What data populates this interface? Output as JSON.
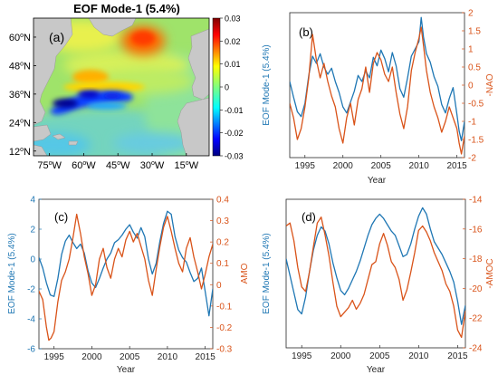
{
  "colors": {
    "blue": "#1f77b4",
    "orange": "#d95319",
    "land": "#c8c8c8",
    "axis": "#262626"
  },
  "chart_data": [
    {
      "panel": "(a)",
      "type": "heatmap",
      "title": "EOF  Mode-1  (5.4%)",
      "colorbar": {
        "ticks": [
          "0.03",
          "0.02",
          "0.01",
          "0",
          "-0.01",
          "-0.02",
          "-0.03"
        ],
        "range": [
          -0.03,
          0.03
        ],
        "colormap": "jet"
      },
      "lat_ticks": [
        "60°N",
        "48°N",
        "36°N",
        "24°N",
        "12°N"
      ],
      "lon_ticks": [
        "75°W",
        "60°W",
        "45°W",
        "30°W",
        "15°W"
      ],
      "lat_range": [
        10,
        68
      ],
      "lon_range": [
        -82,
        -5
      ],
      "features": [
        {
          "kind": "high",
          "lon": -42,
          "lat": 63,
          "value": 0.02
        },
        {
          "kind": "high",
          "lon": -62,
          "lat": 46,
          "value": 0.012
        },
        {
          "kind": "low",
          "lon": -72,
          "lat": 36,
          "value": -0.03
        },
        {
          "kind": "low",
          "lon": -58,
          "lat": 39,
          "value": -0.028
        },
        {
          "kind": "low",
          "lon": -45,
          "lat": 38,
          "value": -0.022
        }
      ]
    },
    {
      "panel": "(b)",
      "type": "line",
      "xlabel": "Year",
      "ylabel_left": "EOF  Mode-1  (5.4%)",
      "ylabel_right": "-NAO",
      "xlim": [
        1993,
        2016
      ],
      "ylim_left": [
        -6,
        6
      ],
      "ylim_right": [
        -2,
        2
      ],
      "x_ticks": [
        "1995",
        "2000",
        "2005",
        "2010",
        "2015"
      ],
      "yl_ticks": [],
      "yr_ticks": [
        "2",
        "1.5",
        "1",
        "0.5",
        "0",
        "-0.5",
        "-1",
        "-1.5",
        "-2"
      ],
      "series": [
        {
          "axis": "left",
          "color": "blue",
          "x": [
            1993.0,
            1993.5,
            1994.0,
            1994.5,
            1995.0,
            1995.5,
            1996.0,
            1996.5,
            1997.0,
            1997.5,
            1998.0,
            1998.5,
            1999.0,
            1999.5,
            2000.0,
            2000.5,
            2001.0,
            2001.5,
            2002.0,
            2002.5,
            2003.0,
            2003.5,
            2004.0,
            2004.5,
            2005.0,
            2005.5,
            2006.0,
            2006.5,
            2007.0,
            2007.5,
            2008.0,
            2008.5,
            2009.0,
            2009.5,
            2010.0,
            2010.3,
            2010.6,
            2011.0,
            2011.5,
            2012.0,
            2012.5,
            2013.0,
            2013.5,
            2014.0,
            2014.5,
            2015.0,
            2015.3,
            2015.6,
            2016.0
          ],
          "y": [
            0.3,
            -1.0,
            -2.2,
            -2.6,
            -1.5,
            0.8,
            2.4,
            1.8,
            2.6,
            1.5,
            0.9,
            1.4,
            0.3,
            -0.6,
            -1.8,
            -2.3,
            -1.4,
            -0.5,
            0.8,
            0.3,
            1.2,
            0.6,
            2.3,
            1.6,
            2.9,
            2.2,
            1.1,
            2.7,
            1.6,
            -0.3,
            -1.0,
            0.6,
            2.4,
            3.0,
            3.6,
            5.6,
            4.0,
            2.6,
            1.9,
            0.7,
            -0.1,
            -1.6,
            -2.3,
            -1.1,
            -0.2,
            -2.4,
            -3.8,
            -4.6,
            -3.0
          ]
        },
        {
          "axis": "right",
          "color": "orange",
          "x": [
            1993.0,
            1993.5,
            1994.0,
            1994.5,
            1995.0,
            1995.5,
            1996.0,
            1996.5,
            1997.0,
            1997.5,
            1998.0,
            1998.5,
            1999.0,
            1999.5,
            2000.0,
            2000.5,
            2001.0,
            2001.5,
            2002.0,
            2002.5,
            2003.0,
            2003.5,
            2004.0,
            2004.5,
            2005.0,
            2005.5,
            2006.0,
            2006.5,
            2007.0,
            2007.5,
            2008.0,
            2008.5,
            2009.0,
            2009.5,
            2010.0,
            2010.3,
            2010.6,
            2011.0,
            2011.5,
            2012.0,
            2012.5,
            2013.0,
            2013.5,
            2014.0,
            2014.5,
            2015.0,
            2015.3,
            2015.6,
            2016.0
          ],
          "y": [
            -0.5,
            -0.9,
            -1.5,
            -1.2,
            -0.6,
            0.2,
            1.4,
            0.7,
            0.2,
            0.6,
            0.1,
            -0.3,
            -0.6,
            -1.2,
            -1.6,
            -0.9,
            -0.5,
            -1.1,
            -0.4,
            -0.1,
            0.5,
            -0.2,
            0.6,
            0.9,
            0.7,
            0.3,
            0.1,
            0.5,
            -0.2,
            -0.8,
            -1.2,
            -0.6,
            0.4,
            0.9,
            1.3,
            1.6,
            1.1,
            0.4,
            -0.2,
            -0.6,
            -0.9,
            -1.3,
            -1.0,
            -0.6,
            -0.9,
            -1.2,
            -1.6,
            -1.9,
            -1.4
          ]
        }
      ]
    },
    {
      "panel": "(c)",
      "type": "line",
      "xlabel": "Year",
      "ylabel_left": "EOF  Mode-1  (5.4%)",
      "ylabel_right": "AMO",
      "xlim": [
        1993,
        2016
      ],
      "ylim_left": [
        -6,
        4
      ],
      "ylim_right": [
        -0.3,
        0.4
      ],
      "x_ticks": [
        "1995",
        "2000",
        "2005",
        "2010",
        "2015"
      ],
      "yl_ticks": [
        "4",
        "2",
        "0",
        "-2",
        "-4",
        "-6"
      ],
      "yr_ticks": [
        "0.4",
        "0.3",
        "0.2",
        "0.1",
        "0",
        "-0.1",
        "-0.2",
        "-0.3"
      ],
      "series": [
        {
          "axis": "left",
          "color": "blue",
          "x": [
            1993.0,
            1993.5,
            1994.0,
            1994.5,
            1995.0,
            1995.5,
            1996.0,
            1996.5,
            1997.0,
            1997.5,
            1998.0,
            1998.5,
            1999.0,
            1999.5,
            2000.0,
            2000.5,
            2001.0,
            2001.5,
            2002.0,
            2002.5,
            2003.0,
            2003.5,
            2004.0,
            2004.5,
            2005.0,
            2005.5,
            2006.0,
            2006.5,
            2007.0,
            2007.5,
            2008.0,
            2008.5,
            2009.0,
            2009.5,
            2010.0,
            2010.5,
            2011.0,
            2011.5,
            2012.0,
            2012.5,
            2013.0,
            2013.5,
            2014.0,
            2014.5,
            2015.0,
            2015.5,
            2016.0
          ],
          "y": [
            0.1,
            -0.6,
            -1.6,
            -2.4,
            -2.5,
            -1.3,
            0.3,
            1.2,
            1.6,
            1.1,
            0.7,
            1.0,
            0.4,
            -0.8,
            -1.6,
            -1.9,
            -1.3,
            -0.6,
            0.0,
            0.4,
            1.1,
            1.3,
            1.6,
            2.0,
            2.3,
            1.8,
            1.4,
            2.1,
            1.5,
            0.0,
            -1.0,
            -0.3,
            1.2,
            2.4,
            3.2,
            3.0,
            1.5,
            0.6,
            0.1,
            -0.2,
            -0.9,
            -1.5,
            -1.3,
            -0.6,
            -2.2,
            -3.8,
            -2.0
          ]
        },
        {
          "axis": "right",
          "color": "orange",
          "x": [
            1993.0,
            1993.5,
            1994.0,
            1994.3,
            1994.6,
            1995.0,
            1995.5,
            1996.0,
            1996.5,
            1997.0,
            1997.5,
            1998.0,
            1998.5,
            1999.0,
            1999.5,
            2000.0,
            2000.5,
            2001.0,
            2001.5,
            2002.0,
            2002.5,
            2003.0,
            2003.5,
            2004.0,
            2004.5,
            2005.0,
            2005.5,
            2006.0,
            2006.5,
            2007.0,
            2007.5,
            2008.0,
            2008.5,
            2009.0,
            2009.5,
            2010.0,
            2010.5,
            2011.0,
            2011.5,
            2012.0,
            2012.5,
            2013.0,
            2013.5,
            2014.0,
            2014.5,
            2015.0,
            2015.5,
            2016.0
          ],
          "y": [
            -0.03,
            -0.07,
            -0.2,
            -0.26,
            -0.25,
            -0.22,
            -0.08,
            0.02,
            0.06,
            0.12,
            0.22,
            0.33,
            0.24,
            0.13,
            0.05,
            -0.05,
            0.0,
            0.12,
            0.17,
            0.08,
            0.03,
            0.12,
            0.17,
            0.13,
            0.21,
            0.25,
            0.2,
            0.24,
            0.18,
            0.12,
            0.02,
            -0.05,
            0.07,
            0.18,
            0.27,
            0.32,
            0.25,
            0.17,
            0.1,
            0.06,
            0.17,
            0.22,
            0.13,
            0.06,
            -0.02,
            0.05,
            0.13,
            0.19
          ]
        }
      ]
    },
    {
      "panel": "(d)",
      "type": "line",
      "xlabel": "Year",
      "ylabel_left": "EOF  Mode-1  (5.4%)",
      "ylabel_right": "-AMOC",
      "xlim": [
        1993,
        2016
      ],
      "ylim_left": [
        -4,
        3
      ],
      "ylim_right": [
        -24,
        -14
      ],
      "x_ticks": [
        "1995",
        "2000",
        "2005",
        "2010",
        "2015"
      ],
      "yl_ticks": [],
      "yr_ticks": [
        "-14",
        "-16",
        "-18",
        "-20",
        "-22",
        "-24"
      ],
      "series": [
        {
          "axis": "left",
          "color": "blue",
          "x": [
            1993.0,
            1993.5,
            1994.0,
            1994.5,
            1995.0,
            1995.5,
            1996.0,
            1996.5,
            1997.0,
            1997.5,
            1998.0,
            1998.5,
            1999.0,
            1999.5,
            2000.0,
            2000.5,
            2001.0,
            2001.5,
            2002.0,
            2002.5,
            2003.0,
            2003.5,
            2004.0,
            2004.5,
            2005.0,
            2005.5,
            2006.0,
            2006.5,
            2007.0,
            2007.5,
            2008.0,
            2008.5,
            2009.0,
            2009.5,
            2010.0,
            2010.5,
            2011.0,
            2011.5,
            2012.0,
            2012.5,
            2013.0,
            2013.5,
            2014.0,
            2014.5,
            2015.0,
            2015.5,
            2016.0
          ],
          "y": [
            0.2,
            -0.6,
            -1.4,
            -2.2,
            -2.4,
            -1.6,
            -0.4,
            0.6,
            1.3,
            1.7,
            1.5,
            0.9,
            0.0,
            -0.7,
            -1.3,
            -1.5,
            -1.2,
            -0.8,
            -0.4,
            0.1,
            0.7,
            1.3,
            1.8,
            2.1,
            2.3,
            2.1,
            1.8,
            1.5,
            1.3,
            0.8,
            0.3,
            0.4,
            0.9,
            1.6,
            2.2,
            2.6,
            2.3,
            1.6,
            1.0,
            0.7,
            0.4,
            0.0,
            -0.4,
            -0.9,
            -1.8,
            -2.9,
            -2.0
          ]
        },
        {
          "axis": "right",
          "color": "orange",
          "x": [
            1993.0,
            1993.5,
            1994.0,
            1994.5,
            1995.0,
            1995.5,
            1996.0,
            1996.5,
            1997.0,
            1997.5,
            1998.0,
            1998.5,
            1999.0,
            1999.5,
            2000.0,
            2000.5,
            2001.0,
            2001.5,
            2002.0,
            2002.5,
            2003.0,
            2003.5,
            2004.0,
            2004.5,
            2005.0,
            2005.5,
            2006.0,
            2006.5,
            2007.0,
            2007.5,
            2008.0,
            2008.5,
            2009.0,
            2009.5,
            2010.0,
            2010.5,
            2011.0,
            2011.5,
            2012.0,
            2012.5,
            2013.0,
            2013.5,
            2014.0,
            2014.5,
            2015.0,
            2015.5,
            2016.0
          ],
          "y": [
            -15.8,
            -15.6,
            -16.8,
            -18.6,
            -19.9,
            -20.2,
            -18.9,
            -17.2,
            -15.6,
            -15.2,
            -16.4,
            -17.8,
            -19.6,
            -21.2,
            -21.9,
            -21.6,
            -21.3,
            -20.8,
            -21.4,
            -21.0,
            -20.4,
            -19.4,
            -18.4,
            -18.2,
            -17.0,
            -16.3,
            -17.1,
            -18.2,
            -18.6,
            -19.4,
            -20.8,
            -20.1,
            -18.9,
            -17.6,
            -16.1,
            -15.8,
            -16.2,
            -16.8,
            -17.6,
            -18.2,
            -18.8,
            -19.7,
            -20.2,
            -21.2,
            -22.8,
            -23.3,
            -21.5
          ]
        }
      ]
    }
  ]
}
